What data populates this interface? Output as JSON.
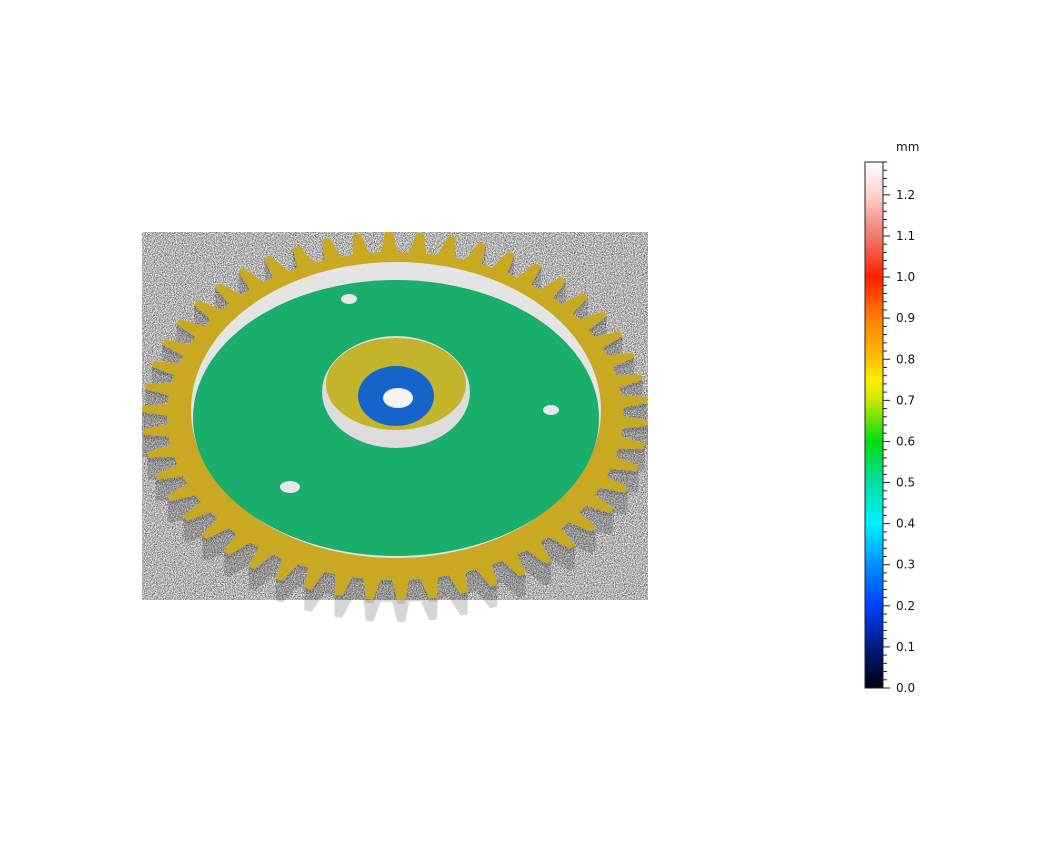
{
  "view": {
    "object": "gear height map",
    "surface_colors": {
      "teeth_rim": "#c9a820",
      "web_disk": "#19b070",
      "hub_ring": "#c8b428",
      "bore_face": "#1060d0",
      "side_walls": "#d8d8d8"
    },
    "tooth_count": 50
  },
  "colorbar": {
    "unit": "mm",
    "min": 0.0,
    "max": 1.28,
    "tick_labels": [
      "0.0",
      "0.1",
      "0.2",
      "0.3",
      "0.4",
      "0.5",
      "0.6",
      "0.7",
      "0.8",
      "0.9",
      "1.0",
      "1.1",
      "1.2"
    ],
    "minor_step": 0.02,
    "stops": [
      {
        "value": 0.0,
        "color": "#000010"
      },
      {
        "value": 0.1,
        "color": "#001a80"
      },
      {
        "value": 0.2,
        "color": "#0040ff"
      },
      {
        "value": 0.3,
        "color": "#0090ff"
      },
      {
        "value": 0.4,
        "color": "#00f0ff"
      },
      {
        "value": 0.5,
        "color": "#00e0a0"
      },
      {
        "value": 0.6,
        "color": "#00dd10"
      },
      {
        "value": 0.7,
        "color": "#c8e800"
      },
      {
        "value": 0.75,
        "color": "#ffee00"
      },
      {
        "value": 0.8,
        "color": "#ffc000"
      },
      {
        "value": 0.9,
        "color": "#ff8000"
      },
      {
        "value": 1.0,
        "color": "#ff2000"
      },
      {
        "value": 1.1,
        "color": "#f07a6a"
      },
      {
        "value": 1.2,
        "color": "#ffd0d0"
      },
      {
        "value": 1.28,
        "color": "#ffffff"
      }
    ]
  }
}
